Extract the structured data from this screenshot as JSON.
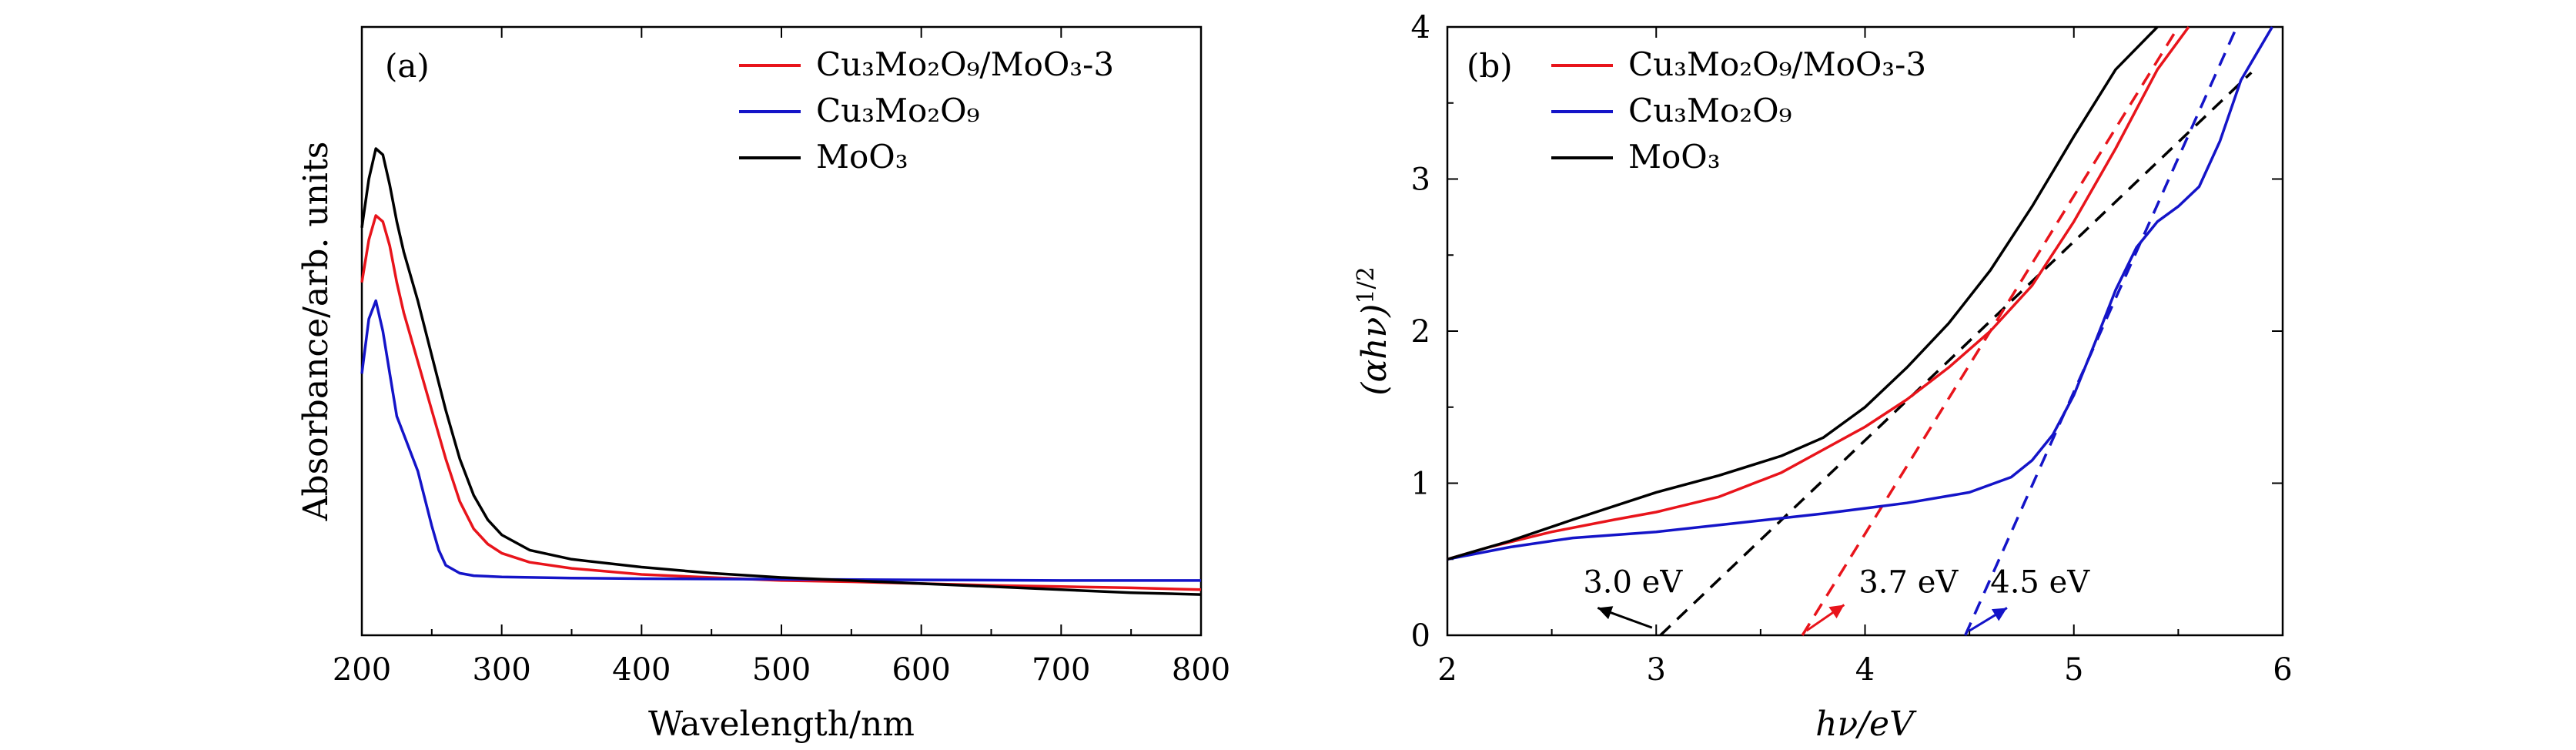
{
  "chart_data": [
    {
      "panel": "(a)",
      "type": "line",
      "xlabel": "Wavelength/nm",
      "ylabel": "Absorbance/arb. units",
      "xlim": [
        200,
        800
      ],
      "ylim": [
        0,
        1
      ],
      "x_ticks": [
        "200",
        "300",
        "400",
        "500",
        "600",
        "700",
        "800"
      ],
      "y_ticks": [],
      "legend_position": "top-right",
      "series": [
        {
          "name": "Cu3Mo2O9/MoO3-3",
          "legend_label": "Cu₃Mo₂O₉/MoO₃-3",
          "color": "#e8141b",
          "x": [
            200,
            205,
            210,
            215,
            220,
            225,
            230,
            240,
            250,
            260,
            270,
            280,
            290,
            300,
            320,
            350,
            400,
            450,
            500,
            550,
            600,
            650,
            700,
            750,
            800
          ],
          "y": [
            0.58,
            0.65,
            0.69,
            0.68,
            0.64,
            0.58,
            0.53,
            0.45,
            0.37,
            0.29,
            0.22,
            0.175,
            0.15,
            0.135,
            0.12,
            0.11,
            0.1,
            0.095,
            0.09,
            0.088,
            0.085,
            0.082,
            0.08,
            0.078,
            0.075
          ]
        },
        {
          "name": "Cu3Mo2O9",
          "legend_label": "Cu₃Mo₂O₉",
          "color": "#1414c8",
          "x": [
            200,
            205,
            210,
            215,
            220,
            225,
            230,
            240,
            250,
            255,
            260,
            270,
            280,
            300,
            350,
            400,
            500,
            600,
            700,
            800
          ],
          "y": [
            0.43,
            0.52,
            0.55,
            0.5,
            0.43,
            0.36,
            0.33,
            0.27,
            0.18,
            0.14,
            0.115,
            0.102,
            0.098,
            0.096,
            0.094,
            0.093,
            0.092,
            0.091,
            0.09,
            0.09
          ]
        },
        {
          "name": "MoO3",
          "legend_label": "MoO₃",
          "color": "#000000",
          "x": [
            200,
            205,
            210,
            215,
            220,
            225,
            230,
            240,
            250,
            260,
            270,
            280,
            290,
            300,
            320,
            350,
            400,
            450,
            500,
            550,
            600,
            650,
            700,
            750,
            800
          ],
          "y": [
            0.67,
            0.75,
            0.8,
            0.79,
            0.74,
            0.68,
            0.63,
            0.55,
            0.46,
            0.37,
            0.29,
            0.23,
            0.19,
            0.165,
            0.14,
            0.125,
            0.112,
            0.102,
            0.095,
            0.09,
            0.085,
            0.08,
            0.075,
            0.07,
            0.067
          ]
        }
      ]
    },
    {
      "panel": "(b)",
      "type": "line",
      "xlabel": "hν/eV",
      "ylabel": "(αhν)^1/2",
      "ylabel_base": "(αhν)",
      "ylabel_sup": "1/2",
      "xlim": [
        2,
        6
      ],
      "ylim": [
        0,
        4
      ],
      "x_ticks": [
        "2",
        "3",
        "4",
        "5",
        "6"
      ],
      "y_ticks": [
        "0",
        "1",
        "2",
        "3",
        "4"
      ],
      "legend_position": "top-left",
      "series": [
        {
          "name": "Cu3Mo2O9/MoO3-3",
          "legend_label": "Cu₃Mo₂O₉/MoO₃-3",
          "color": "#e8141b",
          "x": [
            2.0,
            2.2,
            2.5,
            2.8,
            3.0,
            3.3,
            3.6,
            3.8,
            4.0,
            4.2,
            4.4,
            4.6,
            4.8,
            5.0,
            5.2,
            5.4,
            5.55
          ],
          "y": [
            0.5,
            0.58,
            0.68,
            0.76,
            0.81,
            0.91,
            1.07,
            1.22,
            1.37,
            1.55,
            1.76,
            2.0,
            2.3,
            2.72,
            3.2,
            3.72,
            4.0
          ]
        },
        {
          "name": "Cu3Mo2O9",
          "legend_label": "Cu₃Mo₂O₉",
          "color": "#1414c8",
          "x": [
            2.0,
            2.3,
            2.6,
            3.0,
            3.4,
            3.8,
            4.2,
            4.5,
            4.7,
            4.8,
            4.9,
            5.0,
            5.1,
            5.2,
            5.3,
            5.4,
            5.5,
            5.6,
            5.7,
            5.8,
            5.95
          ],
          "y": [
            0.5,
            0.58,
            0.64,
            0.68,
            0.74,
            0.8,
            0.87,
            0.94,
            1.04,
            1.15,
            1.32,
            1.58,
            1.92,
            2.27,
            2.55,
            2.72,
            2.82,
            2.95,
            3.25,
            3.65,
            4.0
          ]
        },
        {
          "name": "MoO3",
          "legend_label": "MoO₃",
          "color": "#000000",
          "x": [
            2.0,
            2.3,
            2.6,
            3.0,
            3.3,
            3.6,
            3.8,
            4.0,
            4.2,
            4.4,
            4.6,
            4.8,
            5.0,
            5.2,
            5.4
          ],
          "y": [
            0.5,
            0.62,
            0.76,
            0.94,
            1.05,
            1.18,
            1.3,
            1.5,
            1.76,
            2.05,
            2.4,
            2.82,
            3.28,
            3.72,
            4.0
          ]
        }
      ],
      "tangent_lines": [
        {
          "series": "MoO3",
          "color": "#000000",
          "x": [
            3.02,
            5.85
          ],
          "y": [
            0.0,
            3.7
          ]
        },
        {
          "series": "Cu3Mo2O9/MoO3-3",
          "color": "#e8141b",
          "x": [
            3.7,
            5.5
          ],
          "y": [
            0.0,
            4.0
          ]
        },
        {
          "series": "Cu3Mo2O9",
          "color": "#1414c8",
          "x": [
            4.48,
            5.78
          ],
          "y": [
            0.0,
            4.0
          ]
        }
      ],
      "annotations": [
        {
          "text": "3.0 eV",
          "color": "#000000",
          "text_x": 2.65,
          "text_y": 0.28,
          "arrow_from_x": 2.98,
          "arrow_from_y": 0.05,
          "arrow_to_x": 2.72,
          "arrow_to_y": 0.18
        },
        {
          "text": "3.7 eV",
          "color": "#e8141b",
          "text_x": 3.97,
          "text_y": 0.28,
          "arrow_from_x": 3.72,
          "arrow_from_y": 0.03,
          "arrow_to_x": 3.9,
          "arrow_to_y": 0.2
        },
        {
          "text": "4.5 eV",
          "color": "#1414c8",
          "text_x": 4.6,
          "text_y": 0.28,
          "arrow_from_x": 4.5,
          "arrow_from_y": 0.03,
          "arrow_to_x": 4.68,
          "arrow_to_y": 0.18
        }
      ]
    }
  ]
}
